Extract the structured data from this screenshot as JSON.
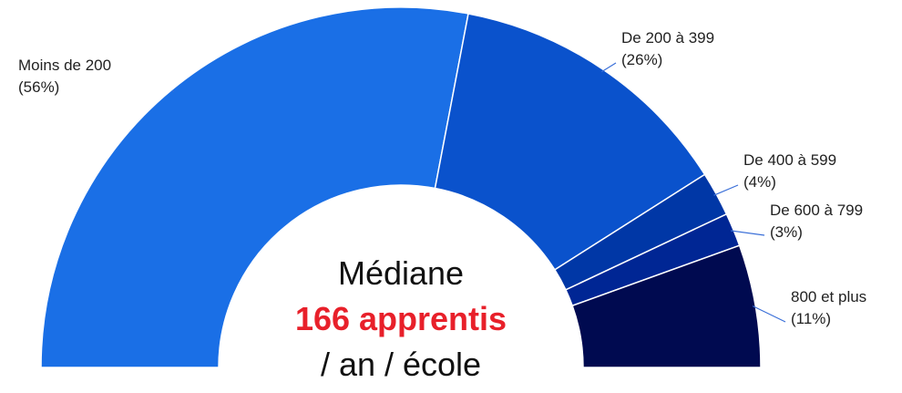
{
  "chart_data": {
    "type": "half-donut",
    "categories": [
      "Moins de 200",
      "De 200 à 399",
      "De 400 à 599",
      "De 600 à 799",
      "800 et plus"
    ],
    "values": [
      56,
      26,
      4,
      3,
      11
    ],
    "value_labels": [
      "(56%)",
      "(26%)",
      "(4%)",
      "(3%)",
      "(11%)"
    ],
    "colors": [
      "#1a6fe6",
      "#0a52cc",
      "#0037a6",
      "#002694",
      "#000a50"
    ],
    "center_text": {
      "line1": "Médiane",
      "line2": "166 apprentis",
      "line3": "/ an / école"
    }
  }
}
